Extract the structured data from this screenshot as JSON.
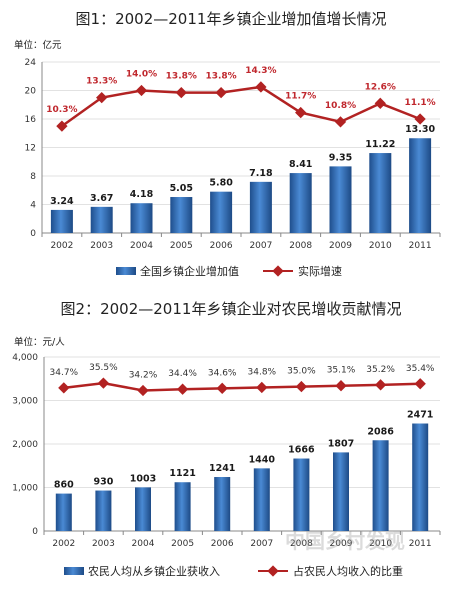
{
  "chart_data": [
    {
      "type": "bar",
      "title": "图1：2002—2011年乡镇企业增加值增长情况",
      "unit": "单位：亿元",
      "categories": [
        "2002",
        "2003",
        "2004",
        "2005",
        "2006",
        "2007",
        "2008",
        "2009",
        "2010",
        "2011"
      ],
      "ylim": [
        0,
        24
      ],
      "yticks": [
        "0",
        "4",
        "8",
        "12",
        "16",
        "20",
        "24"
      ],
      "grid": true,
      "legend_position": "bottom",
      "series": [
        {
          "name": "全国乡镇企业增加值",
          "type": "bar",
          "color": "#2b6cb0",
          "values": [
            3.24,
            3.67,
            4.18,
            5.05,
            5.8,
            7.18,
            8.41,
            9.35,
            11.22,
            13.3
          ],
          "labels": [
            "3.24",
            "3.67",
            "4.18",
            "5.05",
            "5.80",
            "7.18",
            "8.41",
            "9.35",
            "11.22",
            "13.30"
          ]
        },
        {
          "name": "实际增速",
          "type": "line",
          "color": "#b22222",
          "values": [
            10.3,
            13.3,
            14.0,
            13.8,
            13.8,
            14.3,
            11.7,
            10.8,
            12.6,
            11.1
          ],
          "plot_values": [
            15.0,
            19.0,
            20.0,
            19.7,
            19.7,
            20.5,
            16.9,
            15.6,
            18.2,
            16.0
          ],
          "labels": [
            "10.3%",
            "13.3%",
            "14.0%",
            "13.8%",
            "13.8%",
            "14.3%",
            "11.7%",
            "10.8%",
            "12.6%",
            "11.1%"
          ]
        }
      ]
    },
    {
      "type": "bar",
      "title": "图2：2002—2011年乡镇企业对农民增收贡献情况",
      "unit": "单位：元/人",
      "categories": [
        "2002",
        "2003",
        "2004",
        "2005",
        "2006",
        "2007",
        "2008",
        "2009",
        "2010",
        "2011"
      ],
      "ylim": [
        0,
        4000
      ],
      "yticks": [
        "0",
        "1,000",
        "2,000",
        "3,000",
        "4,000"
      ],
      "grid": true,
      "legend_position": "bottom",
      "series": [
        {
          "name": "农民人均从乡镇企业获收入",
          "type": "bar",
          "color": "#2b6cb0",
          "values": [
            860,
            930,
            1003,
            1121,
            1241,
            1440,
            1666,
            1807,
            2086,
            2471
          ],
          "labels": [
            "860",
            "930",
            "1003",
            "1121",
            "1241",
            "1440",
            "1666",
            "1807",
            "2086",
            "2471"
          ]
        },
        {
          "name": "占农民人均收入的比重",
          "type": "line",
          "color": "#b22222",
          "values": [
            34.7,
            35.5,
            34.2,
            34.4,
            34.6,
            34.8,
            35.0,
            35.1,
            35.2,
            35.4
          ],
          "plot_values": [
            3290,
            3400,
            3230,
            3260,
            3280,
            3300,
            3320,
            3340,
            3360,
            3385
          ],
          "labels": [
            "34.7%",
            "35.5%",
            "34.2%",
            "34.4%",
            "34.6%",
            "34.8%",
            "35.0%",
            "35.1%",
            "35.2%",
            "35.4%"
          ]
        }
      ]
    }
  ],
  "watermark": "中国乡村发现"
}
